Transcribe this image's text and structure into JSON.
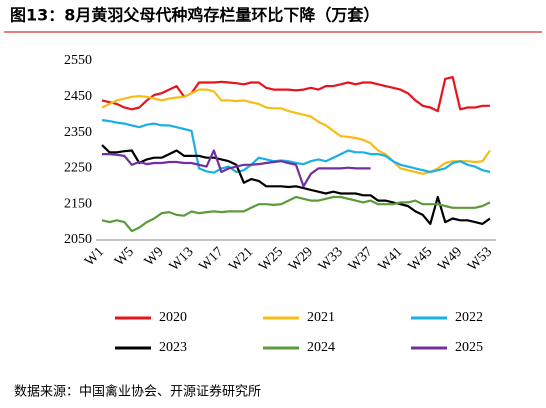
{
  "chart_data": {
    "type": "line",
    "title": "图13：8月黄羽父母代种鸡存栏量环比下降（万套）",
    "source": "数据来源：中国禽业协会、开源证券研究所",
    "categories": [
      "W1",
      null,
      null,
      null,
      "W5",
      null,
      null,
      null,
      "W9",
      null,
      null,
      null,
      "W13",
      null,
      null,
      null,
      "W17",
      null,
      null,
      null,
      "W21",
      null,
      null,
      null,
      "W25",
      null,
      null,
      null,
      "W29",
      null,
      null,
      null,
      "W33",
      null,
      null,
      null,
      "W37",
      null,
      null,
      null,
      "W41",
      null,
      null,
      null,
      "W45",
      null,
      null,
      null,
      "W49",
      null,
      null,
      null,
      "W53"
    ],
    "ylim": [
      2050,
      2550
    ],
    "yticks": [
      2050,
      2150,
      2250,
      2350,
      2450,
      2550
    ],
    "grid": false,
    "series": [
      {
        "name": "2020",
        "color": "#e8141c",
        "values": [
          2440,
          2435,
          2430,
          2420,
          2415,
          2420,
          2440,
          2455,
          2460,
          2470,
          2480,
          2450,
          2460,
          2490,
          2490,
          2490,
          2492,
          2490,
          2488,
          2485,
          2490,
          2490,
          2475,
          2470,
          2470,
          2470,
          2468,
          2470,
          2475,
          2470,
          2480,
          2480,
          2485,
          2490,
          2485,
          2490,
          2490,
          2485,
          2480,
          2475,
          2470,
          2460,
          2440,
          2425,
          2420,
          2410,
          2500,
          2505,
          2415,
          2420,
          2420,
          2425,
          2425
        ]
      },
      {
        "name": "2021",
        "color": "#f7bd16",
        "values": [
          2420,
          2430,
          2440,
          2445,
          2450,
          2452,
          2450,
          2445,
          2440,
          2445,
          2448,
          2450,
          2460,
          2470,
          2470,
          2465,
          2440,
          2440,
          2438,
          2440,
          2435,
          2430,
          2420,
          2418,
          2418,
          2410,
          2405,
          2400,
          2395,
          2380,
          2370,
          2355,
          2340,
          2338,
          2335,
          2330,
          2320,
          2300,
          2290,
          2270,
          2250,
          2245,
          2240,
          2235,
          2240,
          2250,
          2265,
          2270,
          2270,
          2270,
          2268,
          2270,
          2300
        ]
      },
      {
        "name": "2022",
        "color": "#1aafe5",
        "values": [
          2385,
          2382,
          2378,
          2375,
          2370,
          2365,
          2372,
          2375,
          2370,
          2370,
          2365,
          2360,
          2355,
          2250,
          2242,
          2238,
          2250,
          2255,
          2240,
          2245,
          2260,
          2280,
          2275,
          2270,
          2272,
          2270,
          2265,
          2262,
          2270,
          2275,
          2270,
          2280,
          2290,
          2300,
          2295,
          2295,
          2290,
          2290,
          2285,
          2270,
          2260,
          2255,
          2250,
          2245,
          2240,
          2245,
          2250,
          2265,
          2270,
          2260,
          2255,
          2245,
          2240
        ]
      },
      {
        "name": "2023",
        "color": "#000000",
        "values": [
          2315,
          2295,
          2295,
          2298,
          2300,
          2265,
          2275,
          2280,
          2280,
          2290,
          2300,
          2285,
          2285,
          2285,
          2280,
          2280,
          2275,
          2270,
          2260,
          2210,
          2220,
          2215,
          2200,
          2200,
          2200,
          2198,
          2200,
          2195,
          2190,
          2185,
          2180,
          2185,
          2180,
          2180,
          2180,
          2175,
          2175,
          2160,
          2160,
          2155,
          2150,
          2145,
          2130,
          2120,
          2095,
          2170,
          2100,
          2110,
          2105,
          2105,
          2100,
          2095,
          2110
        ]
      },
      {
        "name": "2024",
        "color": "#5b9b3a",
        "values": [
          2105,
          2100,
          2105,
          2100,
          2075,
          2085,
          2100,
          2110,
          2125,
          2128,
          2120,
          2118,
          2130,
          2125,
          2128,
          2130,
          2128,
          2130,
          2130,
          2130,
          2140,
          2150,
          2150,
          2148,
          2150,
          2160,
          2170,
          2165,
          2160,
          2160,
          2165,
          2170,
          2170,
          2165,
          2160,
          2155,
          2160,
          2150,
          2150,
          2150,
          2155,
          2155,
          2160,
          2150,
          2150,
          2150,
          2145,
          2140,
          2140,
          2140,
          2140,
          2145,
          2155
        ]
      },
      {
        "name": "2025",
        "color": "#7030a0",
        "values": [
          2290,
          2290,
          2288,
          2285,
          2260,
          2268,
          2262,
          2265,
          2265,
          2268,
          2268,
          2265,
          2265,
          2260,
          2255,
          2300,
          2240,
          2250,
          2255,
          2260,
          2260,
          2262,
          2265,
          2268,
          2270,
          2265,
          2260,
          2200,
          2235,
          2250,
          2250,
          2250,
          2250,
          2252,
          2250,
          2250,
          2250,
          null,
          null,
          null,
          null,
          null,
          null,
          null,
          null,
          null,
          null,
          null,
          null,
          null,
          null,
          null,
          null
        ]
      }
    ]
  }
}
